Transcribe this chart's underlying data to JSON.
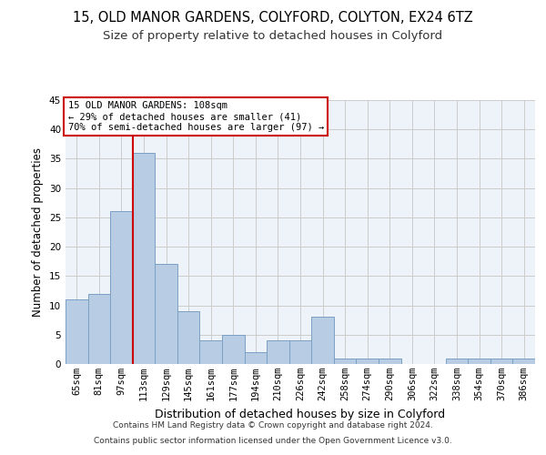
{
  "title1": "15, OLD MANOR GARDENS, COLYFORD, COLYTON, EX24 6TZ",
  "title2": "Size of property relative to detached houses in Colyford",
  "xlabel": "Distribution of detached houses by size in Colyford",
  "ylabel": "Number of detached properties",
  "footer1": "Contains HM Land Registry data © Crown copyright and database right 2024.",
  "footer2": "Contains public sector information licensed under the Open Government Licence v3.0.",
  "categories": [
    "65sqm",
    "81sqm",
    "97sqm",
    "113sqm",
    "129sqm",
    "145sqm",
    "161sqm",
    "177sqm",
    "194sqm",
    "210sqm",
    "226sqm",
    "242sqm",
    "258sqm",
    "274sqm",
    "290sqm",
    "306sqm",
    "322sqm",
    "338sqm",
    "354sqm",
    "370sqm",
    "386sqm"
  ],
  "values": [
    11,
    12,
    26,
    36,
    17,
    9,
    4,
    5,
    2,
    4,
    4,
    8,
    1,
    1,
    1,
    0,
    0,
    1,
    1,
    1,
    1
  ],
  "bar_color": "#b8cce4",
  "bar_edgecolor": "#7aa0c4",
  "vline_color": "#cc0000",
  "vline_pos": 2.5,
  "annotation_line1": "15 OLD MANOR GARDENS: 108sqm",
  "annotation_line2": "← 29% of detached houses are smaller (41)",
  "annotation_line3": "70% of semi-detached houses are larger (97) →",
  "annotation_box_color": "#cc0000",
  "ylim": [
    0,
    45
  ],
  "yticks": [
    0,
    5,
    10,
    15,
    20,
    25,
    30,
    35,
    40,
    45
  ],
  "grid_color": "#cccccc",
  "bg_color": "#eef2f9",
  "title1_fontsize": 10.5,
  "title2_fontsize": 9.5,
  "xlabel_fontsize": 9,
  "ylabel_fontsize": 8.5,
  "tick_fontsize": 7.5,
  "ann_fontsize": 7.5
}
